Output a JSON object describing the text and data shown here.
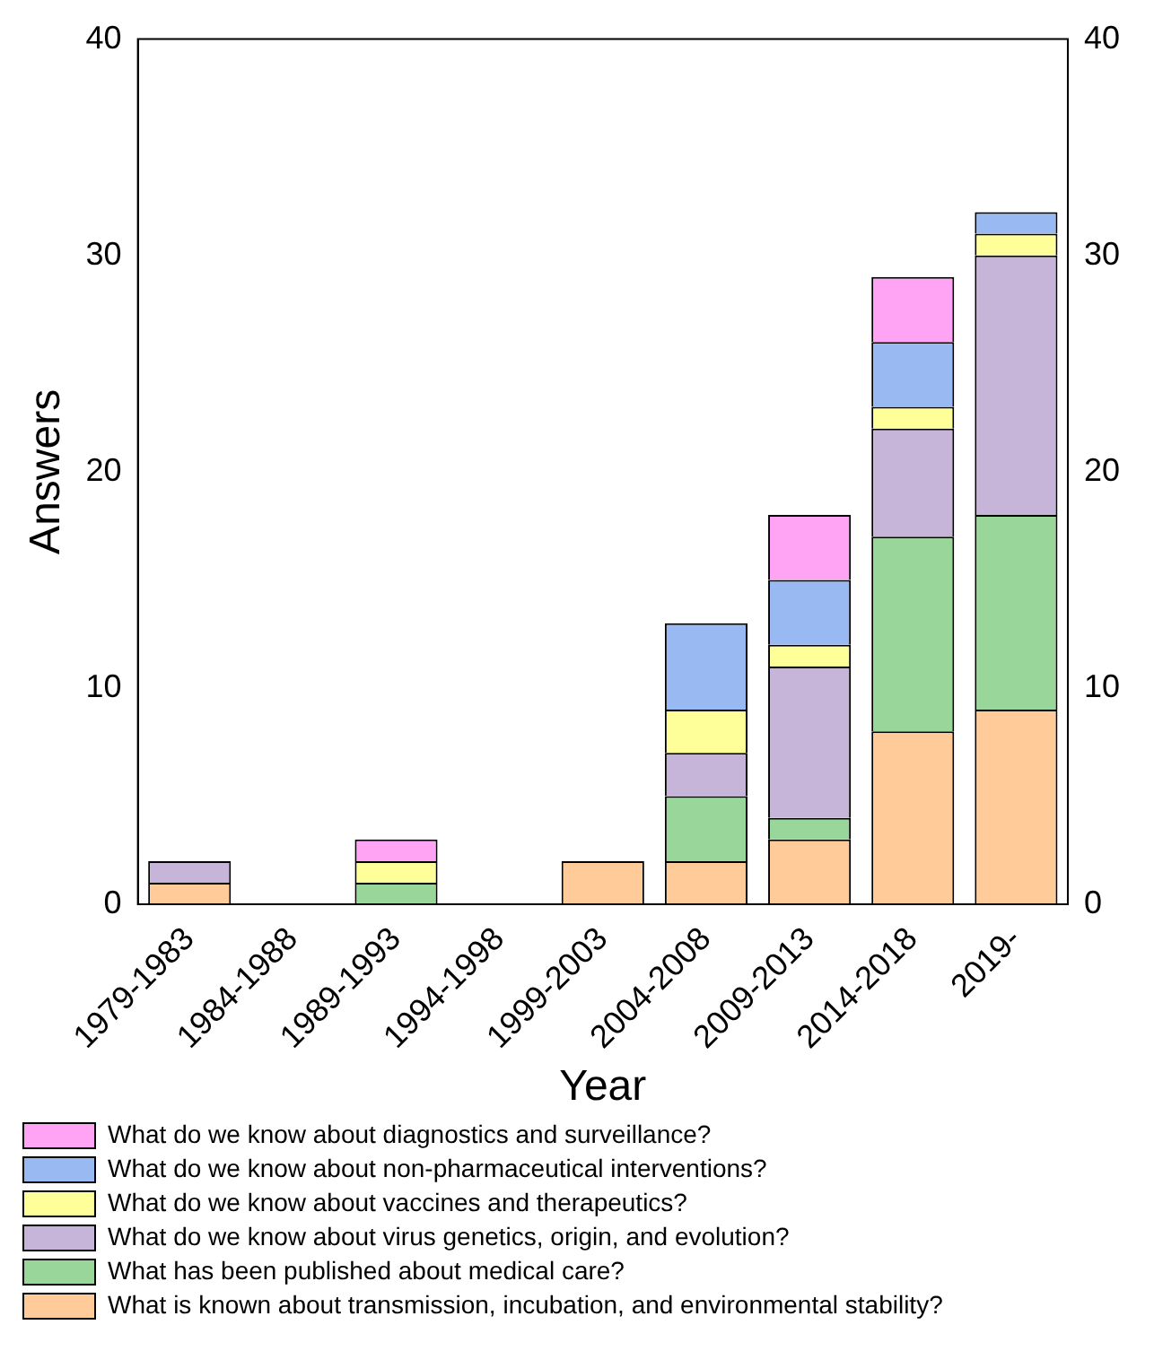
{
  "chart_data": {
    "type": "bar",
    "stacked": true,
    "xlabel": "Year",
    "ylabel": "Answers",
    "categories": [
      "1979-1983",
      "1984-1988",
      "1989-1993",
      "1994-1998",
      "1999-2003",
      "2004-2008",
      "2009-2013",
      "2014-2018",
      "2019-"
    ],
    "series": [
      {
        "name": "What is known about transmission, incubation, and environmental stability?",
        "color": "#ffcc99",
        "values": [
          1,
          0,
          0,
          0,
          2,
          2,
          3,
          8,
          9
        ]
      },
      {
        "name": "What has been published about medical care?",
        "color": "#99d699",
        "values": [
          0,
          0,
          1,
          0,
          0,
          3,
          1,
          9,
          9
        ]
      },
      {
        "name": "What do we know about virus genetics, origin, and evolution?",
        "color": "#c6b5d9",
        "values": [
          1,
          0,
          0,
          0,
          0,
          2,
          7,
          5,
          12
        ]
      },
      {
        "name": "What do we know about vaccines and therapeutics?",
        "color": "#ffff99",
        "values": [
          0,
          0,
          1,
          0,
          0,
          2,
          1,
          1,
          1
        ]
      },
      {
        "name": "What do we know about non-pharmaceutical interventions?",
        "color": "#99b9f2",
        "values": [
          0,
          0,
          0,
          0,
          0,
          4,
          3,
          3,
          1
        ]
      },
      {
        "name": "What do we know about diagnostics and surveillance?",
        "color": "#ffa3f5",
        "values": [
          0,
          0,
          1,
          0,
          0,
          0,
          3,
          3,
          0
        ]
      }
    ],
    "ylim": [
      0,
      40
    ],
    "yticks": [
      0,
      10,
      20,
      30,
      40
    ],
    "y2lim": [
      0,
      40
    ],
    "y2ticks": [
      0,
      10,
      20,
      30,
      40
    ],
    "grid": false,
    "legend": "bottom"
  }
}
